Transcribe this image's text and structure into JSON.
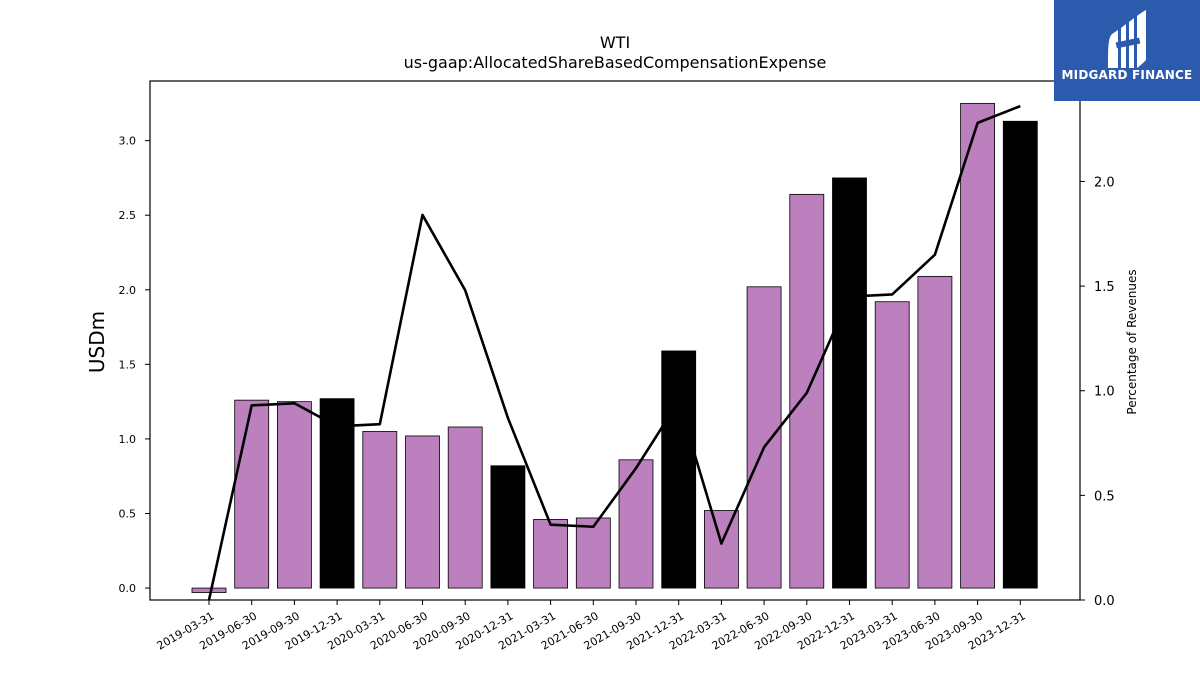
{
  "brand": {
    "name": "MIDGARD FINANCE",
    "bg_color": "#2c5aad"
  },
  "chart_data": {
    "type": "bar",
    "title": "WTI",
    "subtitle": "us-gaap:AllocatedShareBasedCompensationExpense",
    "ylabel": "USDm",
    "y2label": "Percentage of Revenues",
    "ylim": [
      -0.08,
      3.4
    ],
    "y2lim": [
      0,
      2.48
    ],
    "yticks": [
      0.0,
      0.5,
      1.0,
      1.5,
      2.0,
      2.5,
      3.0
    ],
    "y2ticks": [
      0.0,
      0.5,
      1.0,
      1.5,
      2.0
    ],
    "categories": [
      "2019-03-31",
      "2019-06-30",
      "2019-09-30",
      "2019-12-31",
      "2020-03-31",
      "2020-06-30",
      "2020-09-30",
      "2020-12-31",
      "2021-03-31",
      "2021-06-30",
      "2021-09-30",
      "2021-12-31",
      "2022-03-31",
      "2022-06-30",
      "2022-09-30",
      "2022-12-31",
      "2023-03-31",
      "2023-06-30",
      "2023-09-30",
      "2023-12-31"
    ],
    "series": [
      {
        "type": "bar",
        "axis": "left",
        "values": [
          -0.03,
          1.26,
          1.25,
          1.27,
          1.05,
          1.02,
          1.08,
          0.82,
          0.46,
          0.47,
          0.86,
          1.59,
          0.52,
          2.02,
          2.64,
          2.75,
          1.92,
          2.09,
          3.25,
          3.13
        ],
        "fiscal_year_end": [
          false,
          false,
          false,
          true,
          false,
          false,
          false,
          true,
          false,
          false,
          false,
          true,
          false,
          false,
          false,
          true,
          false,
          false,
          false,
          true
        ]
      },
      {
        "type": "line",
        "axis": "right",
        "values": [
          -0.02,
          0.93,
          0.94,
          0.83,
          0.84,
          1.84,
          1.48,
          0.87,
          0.36,
          0.35,
          0.63,
          0.95,
          0.27,
          0.73,
          0.99,
          1.45,
          1.46,
          1.65,
          2.28,
          2.36
        ]
      }
    ],
    "colors": {
      "bar": "#bb80bd",
      "bar_year_end": "#000000",
      "line": "#000000"
    },
    "grid": false,
    "legend": "none"
  }
}
